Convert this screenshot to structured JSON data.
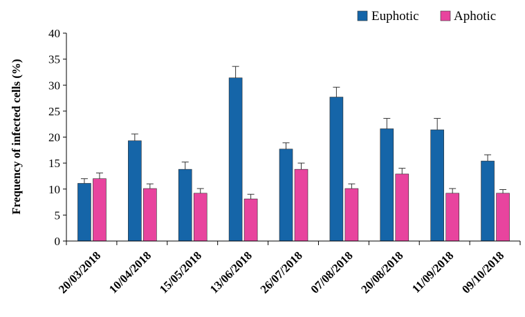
{
  "chart_data": {
    "type": "bar",
    "title": "",
    "xlabel": "",
    "ylabel": "Frequency of infected cells (%)",
    "ylim": [
      0,
      40
    ],
    "yticks": [
      0,
      5,
      10,
      15,
      20,
      25,
      30,
      35,
      40
    ],
    "grid": false,
    "legend_position": "top-right",
    "categories": [
      "20/03/2018",
      "10/04/2018",
      "15/05/2018",
      "13/06/2018",
      "26/07/2018",
      "07/08/2018",
      "20/08/2018",
      "11/09/2018",
      "09/10/2018"
    ],
    "series": [
      {
        "name": "Euphotic",
        "color": "#1565a8",
        "values": [
          11.1,
          19.3,
          13.8,
          31.4,
          17.7,
          27.7,
          21.6,
          21.4,
          15.4
        ],
        "errors": [
          0.9,
          1.3,
          1.4,
          2.2,
          1.2,
          1.9,
          2.0,
          2.2,
          1.2
        ]
      },
      {
        "name": "Aphotic",
        "color": "#e8449e",
        "values": [
          12.0,
          10.1,
          9.2,
          8.1,
          13.8,
          10.1,
          12.9,
          9.2,
          9.2
        ],
        "errors": [
          1.1,
          0.9,
          0.9,
          0.9,
          1.2,
          0.9,
          1.1,
          0.9,
          0.7
        ]
      }
    ]
  }
}
